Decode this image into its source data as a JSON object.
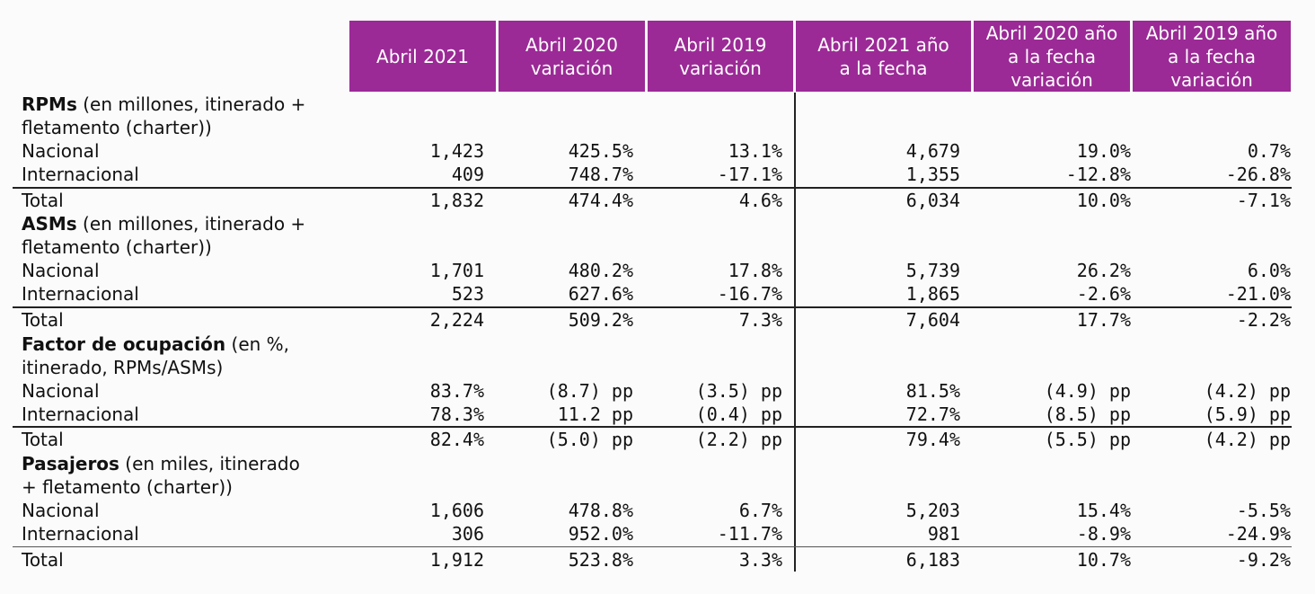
{
  "table": {
    "headers": [
      "Abril 2021",
      "Abril 2020\nvariación",
      "Abril 2019\nvariación",
      "Abril 2021 año\na la fecha",
      "Abril 2020 año\na la fecha\nvariación",
      "Abril 2019 año\na la fecha\nvariación"
    ],
    "sections": [
      {
        "title_bold": "RPMs",
        "title_rest1": " (en millones, itinerado +",
        "title_line2": "fletamento (charter))",
        "rows": [
          {
            "label": "Nacional",
            "values": [
              "1,423",
              "425.5%",
              "13.1%",
              "4,679",
              "19.0%",
              "0.7%"
            ]
          },
          {
            "label": "Internacional",
            "values": [
              "409",
              "748.7%",
              "-17.1%",
              "1,355",
              "-12.8%",
              "-26.8%"
            ]
          },
          {
            "label": "Total",
            "values": [
              "1,832",
              "474.4%",
              "4.6%",
              "6,034",
              "10.0%",
              "-7.1%"
            ]
          }
        ]
      },
      {
        "title_bold": "ASMs",
        "title_rest1": " (en millones, itinerado +",
        "title_line2": "fletamento (charter))",
        "rows": [
          {
            "label": "Nacional",
            "values": [
              "1,701",
              "480.2%",
              "17.8%",
              "5,739",
              "26.2%",
              "6.0%"
            ]
          },
          {
            "label": "Internacional",
            "values": [
              "523",
              "627.6%",
              "-16.7%",
              "1,865",
              "-2.6%",
              "-21.0%"
            ]
          },
          {
            "label": "Total",
            "values": [
              "2,224",
              "509.2%",
              "7.3%",
              "7,604",
              "17.7%",
              "-2.2%"
            ]
          }
        ]
      },
      {
        "title_bold": "Factor de ocupación",
        "title_rest1": " (en %,",
        "title_line2": "itinerado, RPMs/ASMs)",
        "rows": [
          {
            "label": "Nacional",
            "values": [
              "83.7%",
              "(8.7) pp",
              "(3.5) pp",
              "81.5%",
              "(4.9) pp",
              "(4.2) pp"
            ]
          },
          {
            "label": "Internacional",
            "values": [
              "78.3%",
              "11.2 pp",
              "(0.4) pp",
              "72.7%",
              "(8.5) pp",
              "(5.9) pp"
            ]
          },
          {
            "label": "Total",
            "values": [
              "82.4%",
              "(5.0) pp",
              "(2.2) pp",
              "79.4%",
              "(5.5) pp",
              "(4.2) pp"
            ]
          }
        ]
      },
      {
        "title_bold": "Pasajeros",
        "title_rest1": " (en miles, itinerado",
        "title_line2": "+ fletamento (charter))",
        "rows": [
          {
            "label": "Nacional",
            "values": [
              "1,606",
              "478.8%",
              "6.7%",
              "5,203",
              "15.4%",
              "-5.5%"
            ]
          },
          {
            "label": "Internacional",
            "values": [
              "306",
              "952.0%",
              "-11.7%",
              "981",
              "-8.9%",
              "-24.9%"
            ]
          },
          {
            "label": "Total",
            "values": [
              "1,912",
              "523.8%",
              "3.3%",
              "6,183",
              "10.7%",
              "-9.2%"
            ]
          }
        ]
      }
    ]
  },
  "colors": {
    "header_bg": "#9b2a96",
    "header_text": "#ffffff"
  }
}
